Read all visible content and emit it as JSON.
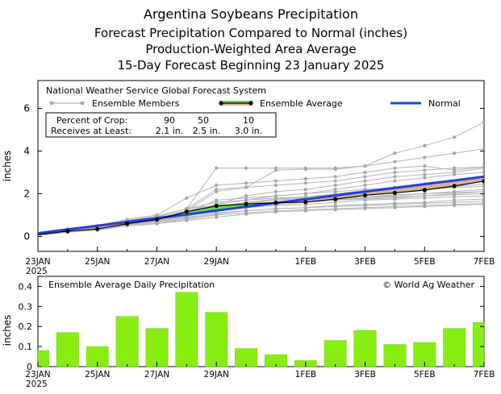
{
  "title": {
    "line1": "Argentina Soybeans Precipitation",
    "line2": "Forecast Precipitation Compared to Normal (inches)",
    "line3": "Production-Weighted Area Average",
    "line4": "15-Day Forecast Beginning 23 January 2025"
  },
  "legend": {
    "system": "National Weather Service Global Forecast System",
    "members": "Ensemble Members",
    "average": "Ensemble Average",
    "normal": "Normal",
    "pct_label": "Percent of Crop:",
    "pct_values": [
      "90",
      "50",
      "10"
    ],
    "receives_label": "Receives at Least:",
    "receives_values": [
      "2.1 in.",
      "2.5 in.",
      "3.0 in."
    ]
  },
  "bottom_title": "Ensemble Average Daily Precipitation",
  "copyright": "© World Ag Weather",
  "colors": {
    "normal": "#2040e0",
    "member": "#b4b4b4",
    "member_marker": "#a6a6a6",
    "above_fill": "#6fd64a",
    "below_fill": "#d8b48e",
    "average": "#000000",
    "bar": "#88ee11",
    "bar_edge": "#66cc00"
  },
  "chart_data": [
    {
      "type": "line",
      "title": "Forecast Precipitation Compared to Normal (inches)",
      "ylabel": "inches",
      "xlabel": "",
      "xlim": [
        0,
        15
      ],
      "ylim": [
        -0.7,
        7.3
      ],
      "yticks": [
        0,
        2,
        4,
        6
      ],
      "x_tick_positions": [
        0,
        2,
        4,
        6,
        9,
        11,
        13,
        15
      ],
      "x_tick_labels": [
        "23JAN",
        "25JAN",
        "27JAN",
        "29JAN",
        "1FEB",
        "3FEB",
        "5FEB",
        "7FEB"
      ],
      "year_label": "2025",
      "x": [
        0,
        1,
        2,
        3,
        4,
        5,
        6,
        7,
        8,
        9,
        10,
        11,
        12,
        13,
        14,
        15
      ],
      "normal": [
        0.15,
        0.33,
        0.5,
        0.68,
        0.86,
        1.03,
        1.21,
        1.39,
        1.57,
        1.74,
        1.92,
        2.1,
        2.27,
        2.45,
        2.62,
        2.8
      ],
      "ensemble_average": [
        0.08,
        0.25,
        0.35,
        0.6,
        0.79,
        1.16,
        1.43,
        1.52,
        1.58,
        1.61,
        1.75,
        1.93,
        2.04,
        2.17,
        2.36,
        2.59
      ],
      "members": [
        [
          0.08,
          0.25,
          0.35,
          0.6,
          0.79,
          1.16,
          1.43,
          1.52,
          1.58,
          1.61,
          1.75,
          1.93,
          2.04,
          2.17,
          2.36,
          2.59
        ],
        [
          0.1,
          0.3,
          0.45,
          0.75,
          0.95,
          1.3,
          3.2,
          3.2,
          3.2,
          3.2,
          3.2,
          3.3,
          3.5,
          3.7,
          3.9,
          4.1
        ],
        [
          0.1,
          0.3,
          0.4,
          0.7,
          0.9,
          1.3,
          2.2,
          2.3,
          3.1,
          3.15,
          3.15,
          3.3,
          3.9,
          4.25,
          4.65,
          5.35
        ],
        [
          0.05,
          0.25,
          0.35,
          0.65,
          0.85,
          1.2,
          2.1,
          2.3,
          2.4,
          2.5,
          2.6,
          2.8,
          3.0,
          3.1,
          3.2,
          3.25
        ],
        [
          0.1,
          0.35,
          0.5,
          0.8,
          1.0,
          1.8,
          2.4,
          2.5,
          2.6,
          2.7,
          2.8,
          3.0,
          3.2,
          3.3,
          3.1,
          3.25
        ],
        [
          0.05,
          0.2,
          0.3,
          0.6,
          0.7,
          1.1,
          1.5,
          1.9,
          2.1,
          2.2,
          2.4,
          2.6,
          2.8,
          2.9,
          3.0,
          3.2
        ],
        [
          0.05,
          0.25,
          0.35,
          0.55,
          0.75,
          1.0,
          1.2,
          1.4,
          1.5,
          1.6,
          1.7,
          1.8,
          1.85,
          1.9,
          1.95,
          2.0
        ],
        [
          0.05,
          0.2,
          0.3,
          0.5,
          0.6,
          0.8,
          1.0,
          1.1,
          1.2,
          1.25,
          1.3,
          1.35,
          1.4,
          1.45,
          1.5,
          1.55
        ],
        [
          0.1,
          0.3,
          0.45,
          0.7,
          0.9,
          1.3,
          1.6,
          1.7,
          1.8,
          1.85,
          1.95,
          2.05,
          2.15,
          2.25,
          2.35,
          2.45
        ],
        [
          0.05,
          0.2,
          0.3,
          0.55,
          0.7,
          1.0,
          1.3,
          1.5,
          1.6,
          1.65,
          1.75,
          1.85,
          1.95,
          2.0,
          2.05,
          2.1
        ],
        [
          0.08,
          0.25,
          0.4,
          0.65,
          0.85,
          1.2,
          1.5,
          1.7,
          1.9,
          2.0,
          2.1,
          2.2,
          2.3,
          2.4,
          2.5,
          2.6
        ],
        [
          0.05,
          0.25,
          0.35,
          0.6,
          0.8,
          1.1,
          1.7,
          1.8,
          1.9,
          2.0,
          2.2,
          2.4,
          2.6,
          2.75,
          2.9,
          3.0
        ],
        [
          0.05,
          0.2,
          0.35,
          0.55,
          0.7,
          0.9,
          1.1,
          1.2,
          1.3,
          1.35,
          1.4,
          1.45,
          1.5,
          1.55,
          1.6,
          1.65
        ],
        [
          0.1,
          0.3,
          0.45,
          0.75,
          0.95,
          1.3,
          1.45,
          1.55,
          1.6,
          1.65,
          1.7,
          1.75,
          1.8,
          1.9,
          2.0,
          2.1
        ],
        [
          0.05,
          0.2,
          0.3,
          0.5,
          0.65,
          0.85,
          1.05,
          1.2,
          1.3,
          1.35,
          1.45,
          1.5,
          1.55,
          1.6,
          1.7,
          1.75
        ],
        [
          0.08,
          0.25,
          0.4,
          0.6,
          0.8,
          1.05,
          1.35,
          1.55,
          1.7,
          1.8,
          1.9,
          2.0,
          2.1,
          2.2,
          2.3,
          2.35
        ],
        [
          0.05,
          0.25,
          0.35,
          0.6,
          0.75,
          1.0,
          1.25,
          1.35,
          1.45,
          1.5,
          1.6,
          1.7,
          1.75,
          1.8,
          1.85,
          1.9
        ],
        [
          0.1,
          0.3,
          0.4,
          0.65,
          0.85,
          1.15,
          1.4,
          1.6,
          1.75,
          1.85,
          2.0,
          2.15,
          2.3,
          2.45,
          2.6,
          2.7
        ],
        [
          0.05,
          0.2,
          0.35,
          0.55,
          0.7,
          0.95,
          1.2,
          1.4,
          1.55,
          1.65,
          1.75,
          1.85,
          1.9,
          2.0,
          2.1,
          2.2
        ],
        [
          0.05,
          0.2,
          0.3,
          0.5,
          0.6,
          0.75,
          0.9,
          1.05,
          1.15,
          1.2,
          1.25,
          1.3,
          1.35,
          1.4,
          1.45,
          1.5
        ]
      ]
    },
    {
      "type": "bar",
      "title": "Ensemble Average Daily Precipitation",
      "ylabel": "inches",
      "xlabel": "",
      "ylim": [
        0,
        0.45
      ],
      "yticks": [
        0,
        0.1,
        0.2,
        0.3,
        0.4
      ],
      "ytick_labels": [
        "0",
        "0.1",
        "0.2",
        "0.3",
        "0.4"
      ],
      "x_tick_positions": [
        0,
        2,
        4,
        6,
        9,
        11,
        13,
        15
      ],
      "x_tick_labels": [
        "23JAN",
        "25JAN",
        "27JAN",
        "29JAN",
        "1FEB",
        "3FEB",
        "5FEB",
        "7FEB"
      ],
      "year_label": "2025",
      "x": [
        0,
        1,
        2,
        3,
        4,
        5,
        6,
        7,
        8,
        9,
        10,
        11,
        12,
        13,
        14,
        15
      ],
      "values": [
        0.08,
        0.17,
        0.1,
        0.25,
        0.19,
        0.37,
        0.27,
        0.09,
        0.06,
        0.03,
        0.13,
        0.18,
        0.11,
        0.12,
        0.19,
        0.22
      ]
    }
  ]
}
